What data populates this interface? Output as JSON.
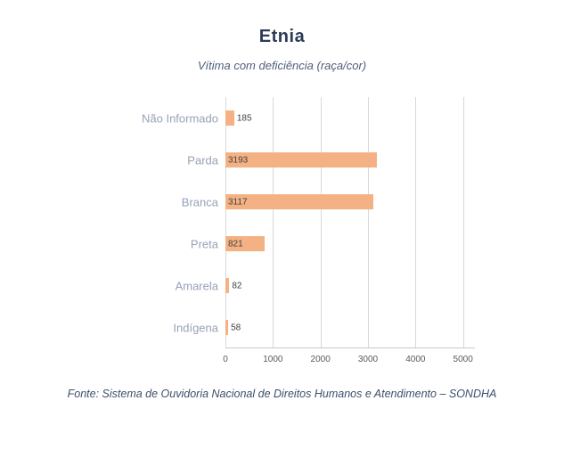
{
  "title": "Etnia",
  "subtitle": "Vítima com deficiência (raça/cor)",
  "footer": "Fonte: Sistema de Ouvidoria Nacional de Direitos Humanos e Atendimento – SONDHA",
  "chart_data": {
    "type": "bar",
    "orientation": "horizontal",
    "title": "Etnia",
    "subtitle": "Vítima com deficiência (raça/cor)",
    "categories": [
      "Não Informado",
      "Parda",
      "Branca",
      "Preta",
      "Amarela",
      "Indígena"
    ],
    "values": [
      185,
      3193,
      3117,
      821,
      82,
      58
    ],
    "xlabel": "",
    "ylabel": "",
    "xlim": [
      0,
      5250
    ],
    "xticks": [
      0,
      1000,
      2000,
      3000,
      4000,
      5000
    ],
    "grid": true,
    "legend": "none",
    "bar_color": "#f4b183",
    "category_label_color": "#97a1b7",
    "value_label_color": "#404040",
    "tick_label_color": "#595959",
    "gridline_color": "#d9d9d9"
  }
}
